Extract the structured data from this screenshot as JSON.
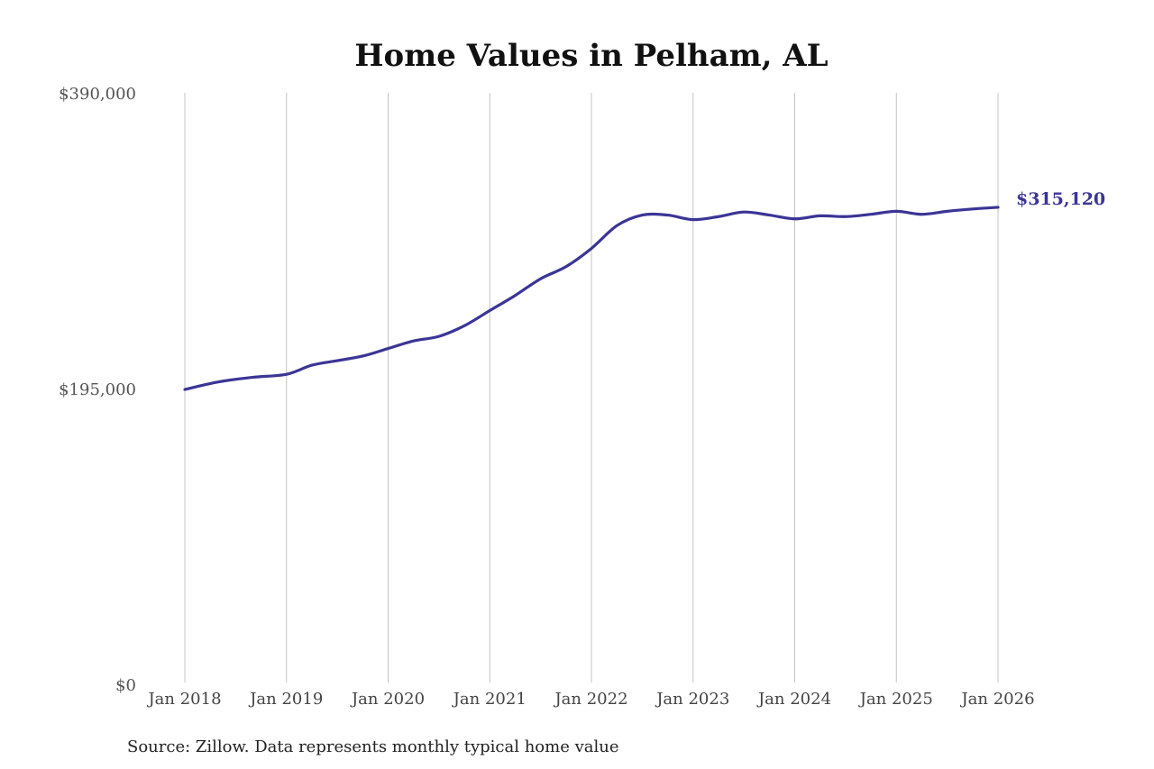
{
  "chart_data": {
    "type": "line",
    "title": "Home Values in Pelham, AL",
    "source": "Source: Zillow. Data represents monthly typical home value",
    "ylim": [
      0,
      390000
    ],
    "y_ticks": [
      {
        "value": 0,
        "label": "$0"
      },
      {
        "value": 195000,
        "label": "$195,000"
      },
      {
        "value": 390000,
        "label": "$390,000"
      }
    ],
    "x_ticks": [
      {
        "value": "2018-01",
        "label": "Jan 2018"
      },
      {
        "value": "2019-01",
        "label": "Jan 2019"
      },
      {
        "value": "2020-01",
        "label": "Jan 2020"
      },
      {
        "value": "2021-01",
        "label": "Jan 2021"
      },
      {
        "value": "2022-01",
        "label": "Jan 2022"
      },
      {
        "value": "2023-01",
        "label": "Jan 2023"
      },
      {
        "value": "2024-01",
        "label": "Jan 2024"
      },
      {
        "value": "2025-01",
        "label": "Jan 2025"
      },
      {
        "value": "2026-01",
        "label": "Jan 2026"
      }
    ],
    "grid": "vertical",
    "series": [
      {
        "color": "#3b3596",
        "points": [
          {
            "x": "2018-01",
            "y": 195000
          },
          {
            "x": "2018-05",
            "y": 200000
          },
          {
            "x": "2018-09",
            "y": 203000
          },
          {
            "x": "2019-01",
            "y": 205000
          },
          {
            "x": "2019-04",
            "y": 211000
          },
          {
            "x": "2019-07",
            "y": 214000
          },
          {
            "x": "2019-10",
            "y": 217000
          },
          {
            "x": "2020-01",
            "y": 222000
          },
          {
            "x": "2020-04",
            "y": 227000
          },
          {
            "x": "2020-07",
            "y": 230000
          },
          {
            "x": "2020-10",
            "y": 237000
          },
          {
            "x": "2021-01",
            "y": 247000
          },
          {
            "x": "2021-04",
            "y": 257000
          },
          {
            "x": "2021-07",
            "y": 268000
          },
          {
            "x": "2021-10",
            "y": 276000
          },
          {
            "x": "2022-01",
            "y": 288000
          },
          {
            "x": "2022-04",
            "y": 303000
          },
          {
            "x": "2022-07",
            "y": 310000
          },
          {
            "x": "2022-10",
            "y": 310000
          },
          {
            "x": "2023-01",
            "y": 307000
          },
          {
            "x": "2023-04",
            "y": 309000
          },
          {
            "x": "2023-07",
            "y": 312000
          },
          {
            "x": "2023-10",
            "y": 310000
          },
          {
            "x": "2024-01",
            "y": 307500
          },
          {
            "x": "2024-04",
            "y": 309500
          },
          {
            "x": "2024-07",
            "y": 309000
          },
          {
            "x": "2024-10",
            "y": 310500
          },
          {
            "x": "2025-01",
            "y": 312500
          },
          {
            "x": "2025-04",
            "y": 310500
          },
          {
            "x": "2025-07",
            "y": 312500
          },
          {
            "x": "2025-10",
            "y": 314000
          },
          {
            "x": "2026-01",
            "y": 315120
          }
        ]
      }
    ],
    "end_label": "$315,120"
  }
}
